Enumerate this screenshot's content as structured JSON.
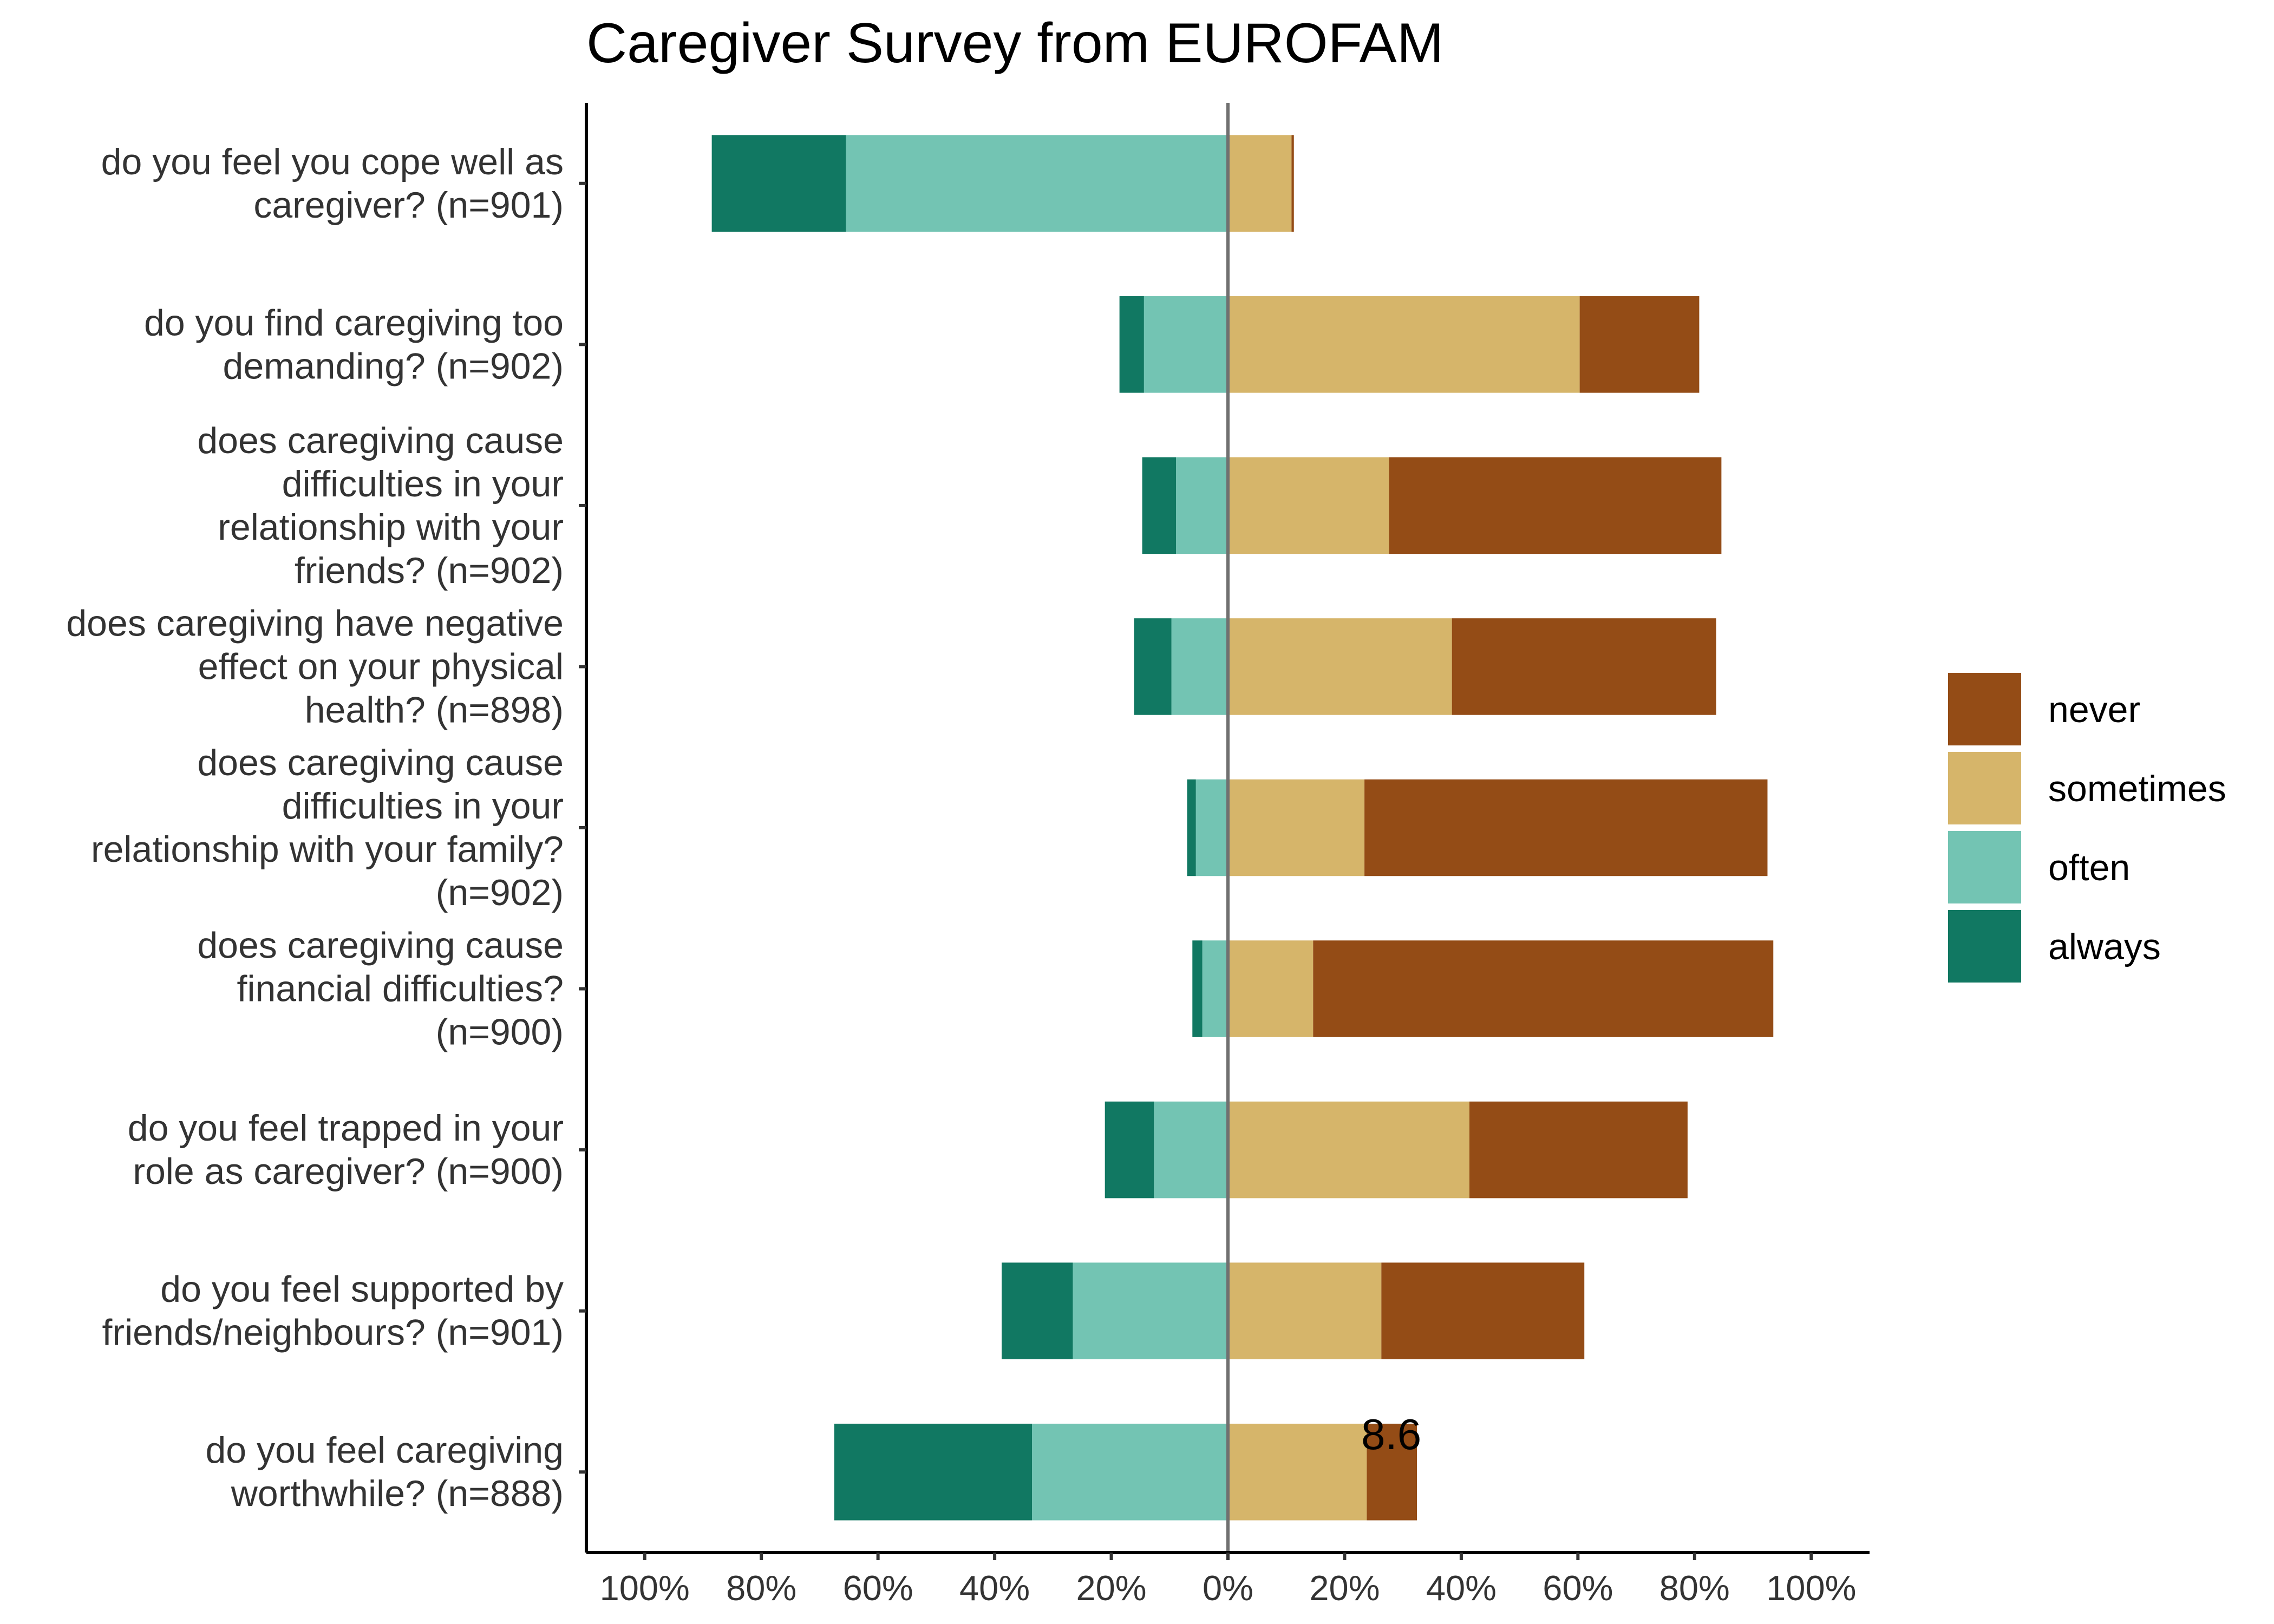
{
  "chart_data": {
    "type": "bar",
    "orientation": "horizontal",
    "layout": "diverging-stacked",
    "title": "Caregiver Survey from EUROFAM",
    "categories": [
      [
        "do you feel you cope well as",
        "caregiver? (n=901)"
      ],
      [
        "do you find caregiving too",
        "demanding? (n=902)"
      ],
      [
        "does caregiving cause",
        "difficulties in your",
        "relationship with your",
        "friends? (n=902)"
      ],
      [
        "does caregiving have negative",
        "effect on your physical",
        "health? (n=898)"
      ],
      [
        "does caregiving cause",
        "difficulties in your",
        "relationship with your family?",
        "(n=902)"
      ],
      [
        "does caregiving cause",
        "financial difficulties?",
        "(n=900)"
      ],
      [
        "do you feel trapped in your",
        "role as caregiver? (n=900)"
      ],
      [
        "do you feel supported by",
        "friends/neighbours? (n=901)"
      ],
      [
        "do you feel caregiving",
        "worthwhile? (n=888)"
      ]
    ],
    "series": [
      {
        "name": "always",
        "side": "negative",
        "color": "#117862",
        "values": [
          23.0,
          4.2,
          5.8,
          6.4,
          1.5,
          1.7,
          8.4,
          12.2,
          33.9
        ]
      },
      {
        "name": "often",
        "side": "negative",
        "color": "#73c4b3",
        "values": [
          65.5,
          14.4,
          8.9,
          9.7,
          5.5,
          4.4,
          12.7,
          26.6,
          33.6
        ]
      },
      {
        "name": "sometimes",
        "side": "positive",
        "color": "#d6b56a",
        "values": [
          10.9,
          60.3,
          27.6,
          38.4,
          23.4,
          14.6,
          41.4,
          26.3,
          23.8
        ]
      },
      {
        "name": "never",
        "side": "positive",
        "color": "#944c16",
        "values": [
          0.4,
          20.5,
          57.0,
          45.3,
          69.1,
          78.9,
          37.4,
          34.8,
          8.6
        ]
      }
    ],
    "xlim": [
      -110,
      110
    ],
    "x_ticks": [
      -100,
      -80,
      -60,
      -40,
      -20,
      0,
      20,
      40,
      60,
      80,
      100
    ],
    "x_tick_labels": [
      "100%",
      "80%",
      "60%",
      "40%",
      "20%",
      "0%",
      "20%",
      "40%",
      "60%",
      "80%",
      "100%"
    ],
    "legend": {
      "position": "right",
      "order": [
        "never",
        "sometimes",
        "often",
        "always"
      ]
    },
    "annotations": [
      {
        "text": "8.6",
        "category_index": 8,
        "x": 28
      }
    ],
    "grid": false
  }
}
